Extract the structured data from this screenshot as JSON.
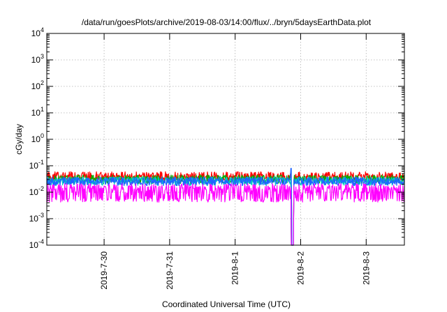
{
  "chart_data": {
    "type": "line",
    "title": "/data/run/goesPlots/archive/2019-08-03/14:00/flux/../bryn/5daysEarthData.plot",
    "xlabel": "Coordinated Universal Time (UTC)",
    "ylabel": "cGy/day",
    "yscale": "log",
    "ylim": [
      0.0001,
      10000
    ],
    "xlim": [
      "2019-07-29T03:00",
      "2019-08-03T14:00"
    ],
    "grid": true,
    "legend": "none",
    "x_ticks": [
      {
        "value": "2019-07-30T00:00",
        "label": "2019-7-30"
      },
      {
        "value": "2019-07-31T00:00",
        "label": "2019-7-31"
      },
      {
        "value": "2019-08-01T00:00",
        "label": "2019-8-1"
      },
      {
        "value": "2019-08-02T00:00",
        "label": "2019-8-2"
      },
      {
        "value": "2019-08-03T00:00",
        "label": "2019-8-3"
      }
    ],
    "y_ticks": [
      {
        "value": 0.0001,
        "base": "10",
        "exp": "-4"
      },
      {
        "value": 0.001,
        "base": "10",
        "exp": "-3"
      },
      {
        "value": 0.01,
        "base": "10",
        "exp": "-2"
      },
      {
        "value": 0.1,
        "base": "10",
        "exp": "-1"
      },
      {
        "value": 1,
        "base": "10",
        "exp": "0"
      },
      {
        "value": 10,
        "base": "10",
        "exp": "1"
      },
      {
        "value": 100,
        "base": "10",
        "exp": "2"
      },
      {
        "value": 1000,
        "base": "10",
        "exp": "3"
      },
      {
        "value": 10000,
        "base": "10",
        "exp": "4"
      }
    ],
    "series": [
      {
        "color": "#ff0000",
        "baseline": 0.035,
        "noise_low": 0.75,
        "noise_high": 1.7
      },
      {
        "color": "#00b000",
        "baseline": 0.03,
        "noise_low": 0.7,
        "noise_high": 1.5
      },
      {
        "color": "#00c8c8",
        "baseline": 0.027,
        "noise_low": 0.65,
        "noise_high": 1.4
      },
      {
        "color": "#1e64ff",
        "baseline": 0.025,
        "noise_low": 0.7,
        "noise_high": 1.5
      },
      {
        "color": "#ff00ff",
        "baseline": 0.006,
        "noise_low": 0.7,
        "noise_high": 3.5
      }
    ],
    "events": [
      {
        "x": "2019-08-01T21:00",
        "description": "data dropout",
        "min_value": 0.0001
      },
      {
        "x": "2019-08-01T20:30",
        "description": "brief spike",
        "max_value": 0.08
      }
    ]
  }
}
